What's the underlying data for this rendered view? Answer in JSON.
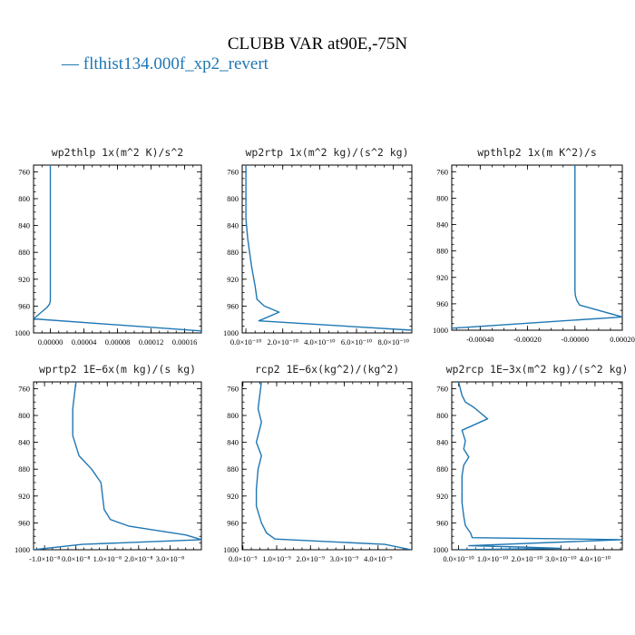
{
  "figure": {
    "title": "CLUBB VAR at90E,-75N",
    "legend_label": "— flthist134.000f_xp2_revert",
    "series_color": "#1f77b4"
  },
  "chart_data": [
    {
      "type": "line",
      "title": "wp2thlp   1x(m^2 K)/s^2",
      "series_name": "flthist134.000f_xp2_revert",
      "xlim": [
        -2e-05,
        0.00018
      ],
      "ylim": [
        1000,
        750
      ],
      "xticks": [
        "0.00000",
        "0.00004",
        "0.00008",
        "0.00012",
        "0.00016"
      ],
      "xtick_values": [
        0.0,
        4e-05,
        8e-05,
        0.00012,
        0.00016
      ],
      "yticks": [
        "760",
        "800",
        "840",
        "880",
        "920",
        "960",
        "1000"
      ],
      "ytick_values": [
        760,
        800,
        840,
        880,
        920,
        960,
        1000
      ],
      "x": [
        0.0,
        0.0,
        0.0,
        0.0,
        -1e-06,
        -4e-06,
        -2e-05,
        0.00018
      ],
      "y": [
        750,
        900,
        945,
        952,
        957,
        962,
        979,
        997
      ]
    },
    {
      "type": "line",
      "title": "wp2rtp   1x(m^2 kg)/(s^2 kg)",
      "series_name": "flthist134.000f_xp2_revert",
      "xlim": [
        -2e-11,
        9e-10
      ],
      "ylim": [
        1000,
        750
      ],
      "xticks": [
        "0.0×10⁻¹⁰",
        "2.0×10⁻¹⁰",
        "4.0×10⁻¹⁰",
        "6.0×10⁻¹⁰",
        "8.0×10⁻¹⁰"
      ],
      "xtick_values": [
        0.0,
        2e-10,
        4e-10,
        6e-10,
        8e-10
      ],
      "yticks": [
        "760",
        "800",
        "840",
        "880",
        "920",
        "960",
        "1000"
      ],
      "ytick_values": [
        760,
        800,
        840,
        880,
        920,
        960,
        1000
      ],
      "x": [
        0.0,
        0.0,
        0.0,
        1e-11,
        3e-11,
        5e-11,
        6e-11,
        1e-10,
        1.8e-10,
        7e-11,
        9e-10
      ],
      "y": [
        750,
        800,
        830,
        860,
        900,
        930,
        950,
        960,
        969,
        982,
        996
      ]
    },
    {
      "type": "line",
      "title": "wpthlp2   1x(m K^2)/s",
      "series_name": "flthist134.000f_xp2_revert",
      "xlim": [
        -0.00052,
        0.0002
      ],
      "ylim": [
        1000,
        750
      ],
      "xticks": [
        "-0.00040",
        "-0.00020",
        "-0.00000",
        "0.00020"
      ],
      "xtick_values": [
        -0.0004,
        -0.0002,
        0.0,
        0.0002
      ],
      "yticks": [
        "760",
        "800",
        "840",
        "880",
        "920",
        "960",
        "1000"
      ],
      "ytick_values": [
        760,
        800,
        840,
        880,
        920,
        960,
        1000
      ],
      "x": [
        0.0,
        0.0,
        0.0,
        2e-06,
        8e-06,
        2e-05,
        0.0002,
        -0.00052
      ],
      "y": [
        750,
        900,
        940,
        948,
        955,
        962,
        980,
        997
      ]
    },
    {
      "type": "line",
      "title": "wprtp2   1E−6x(m kg)/(s kg)",
      "series_name": "flthist134.000f_xp2_revert",
      "xlim": [
        -1.35e-08,
        4e-08
      ],
      "ylim": [
        1000,
        750
      ],
      "xticks": [
        "-1.0×10⁻⁸",
        "0.0×10⁻⁸",
        "1.0×10⁻⁸",
        "2.0×10⁻⁸",
        "3.0×10⁻⁸"
      ],
      "xtick_values": [
        -1e-08,
        0.0,
        1e-08,
        2e-08,
        3e-08
      ],
      "yticks": [
        "760",
        "800",
        "840",
        "880",
        "920",
        "960",
        "1000"
      ],
      "ytick_values": [
        760,
        800,
        840,
        880,
        920,
        960,
        1000
      ],
      "x": [
        0.0,
        -1e-09,
        -1e-09,
        1e-09,
        5e-09,
        8e-09,
        9e-09,
        1.1e-08,
        1.7e-08,
        3.5e-08,
        4e-08,
        2e-09,
        -1.35e-08
      ],
      "y": [
        750,
        790,
        830,
        860,
        880,
        900,
        940,
        955,
        965,
        978,
        985,
        992,
        1000
      ]
    },
    {
      "type": "line",
      "title": "rcp2   1E−6x(kg^2)/(kg^2)",
      "series_name": "flthist134.000f_xp2_revert",
      "xlim": [
        -2e-11,
        5e-09
      ],
      "ylim": [
        1000,
        750
      ],
      "xticks": [
        "0.0×10⁻⁹",
        "1.0×10⁻⁹",
        "2.0×10⁻⁹",
        "3.0×10⁻⁹",
        "4.0×10⁻⁹"
      ],
      "xtick_values": [
        0.0,
        1e-09,
        2e-09,
        3e-09,
        4e-09
      ],
      "yticks": [
        "760",
        "800",
        "840",
        "880",
        "920",
        "960",
        "1000"
      ],
      "ytick_values": [
        760,
        800,
        840,
        880,
        920,
        960,
        1000
      ],
      "x": [
        5.5e-10,
        4.5e-10,
        5.5e-10,
        4e-10,
        5.5e-10,
        4.5e-10,
        4e-10,
        4e-10,
        5.5e-10,
        7e-10,
        9.5e-10,
        4.2e-09,
        4.98e-09
      ],
      "y": [
        750,
        790,
        810,
        840,
        860,
        880,
        910,
        935,
        960,
        975,
        984,
        992,
        1000
      ]
    },
    {
      "type": "line",
      "title": "wp2rcp   1E−3x(m^2 kg)/(s^2 kg)",
      "series_name": "flthist134.000f_xp2_revert",
      "xlim": [
        -2e-11,
        4.8e-10
      ],
      "ylim": [
        1000,
        750
      ],
      "xticks": [
        "0.0×10⁻¹⁰",
        "1.0×10⁻¹⁰",
        "2.0×10⁻¹⁰",
        "3.0×10⁻¹⁰",
        "4.0×10⁻¹⁰"
      ],
      "xtick_values": [
        0.0,
        1e-10,
        2e-10,
        3e-10,
        4e-10
      ],
      "yticks": [
        "760",
        "800",
        "840",
        "880",
        "920",
        "960",
        "1000"
      ],
      "ytick_values": [
        760,
        800,
        840,
        880,
        920,
        960,
        1000
      ],
      "x": [
        0.0,
        1e-11,
        2e-11,
        4.5e-11,
        8.5e-11,
        1e-11,
        2e-11,
        1.5e-11,
        3e-11,
        1.5e-11,
        1e-11,
        1e-11,
        1e-11,
        1.5e-11,
        2e-11,
        3.5e-11,
        4e-11,
        4.8e-10,
        3e-11,
        1.8e-10,
        3e-10,
        0.0
      ],
      "y": [
        750,
        770,
        780,
        788,
        805,
        822,
        838,
        850,
        862,
        874,
        890,
        910,
        930,
        950,
        964,
        975,
        982,
        985,
        994,
        996,
        998,
        1000
      ]
    }
  ]
}
